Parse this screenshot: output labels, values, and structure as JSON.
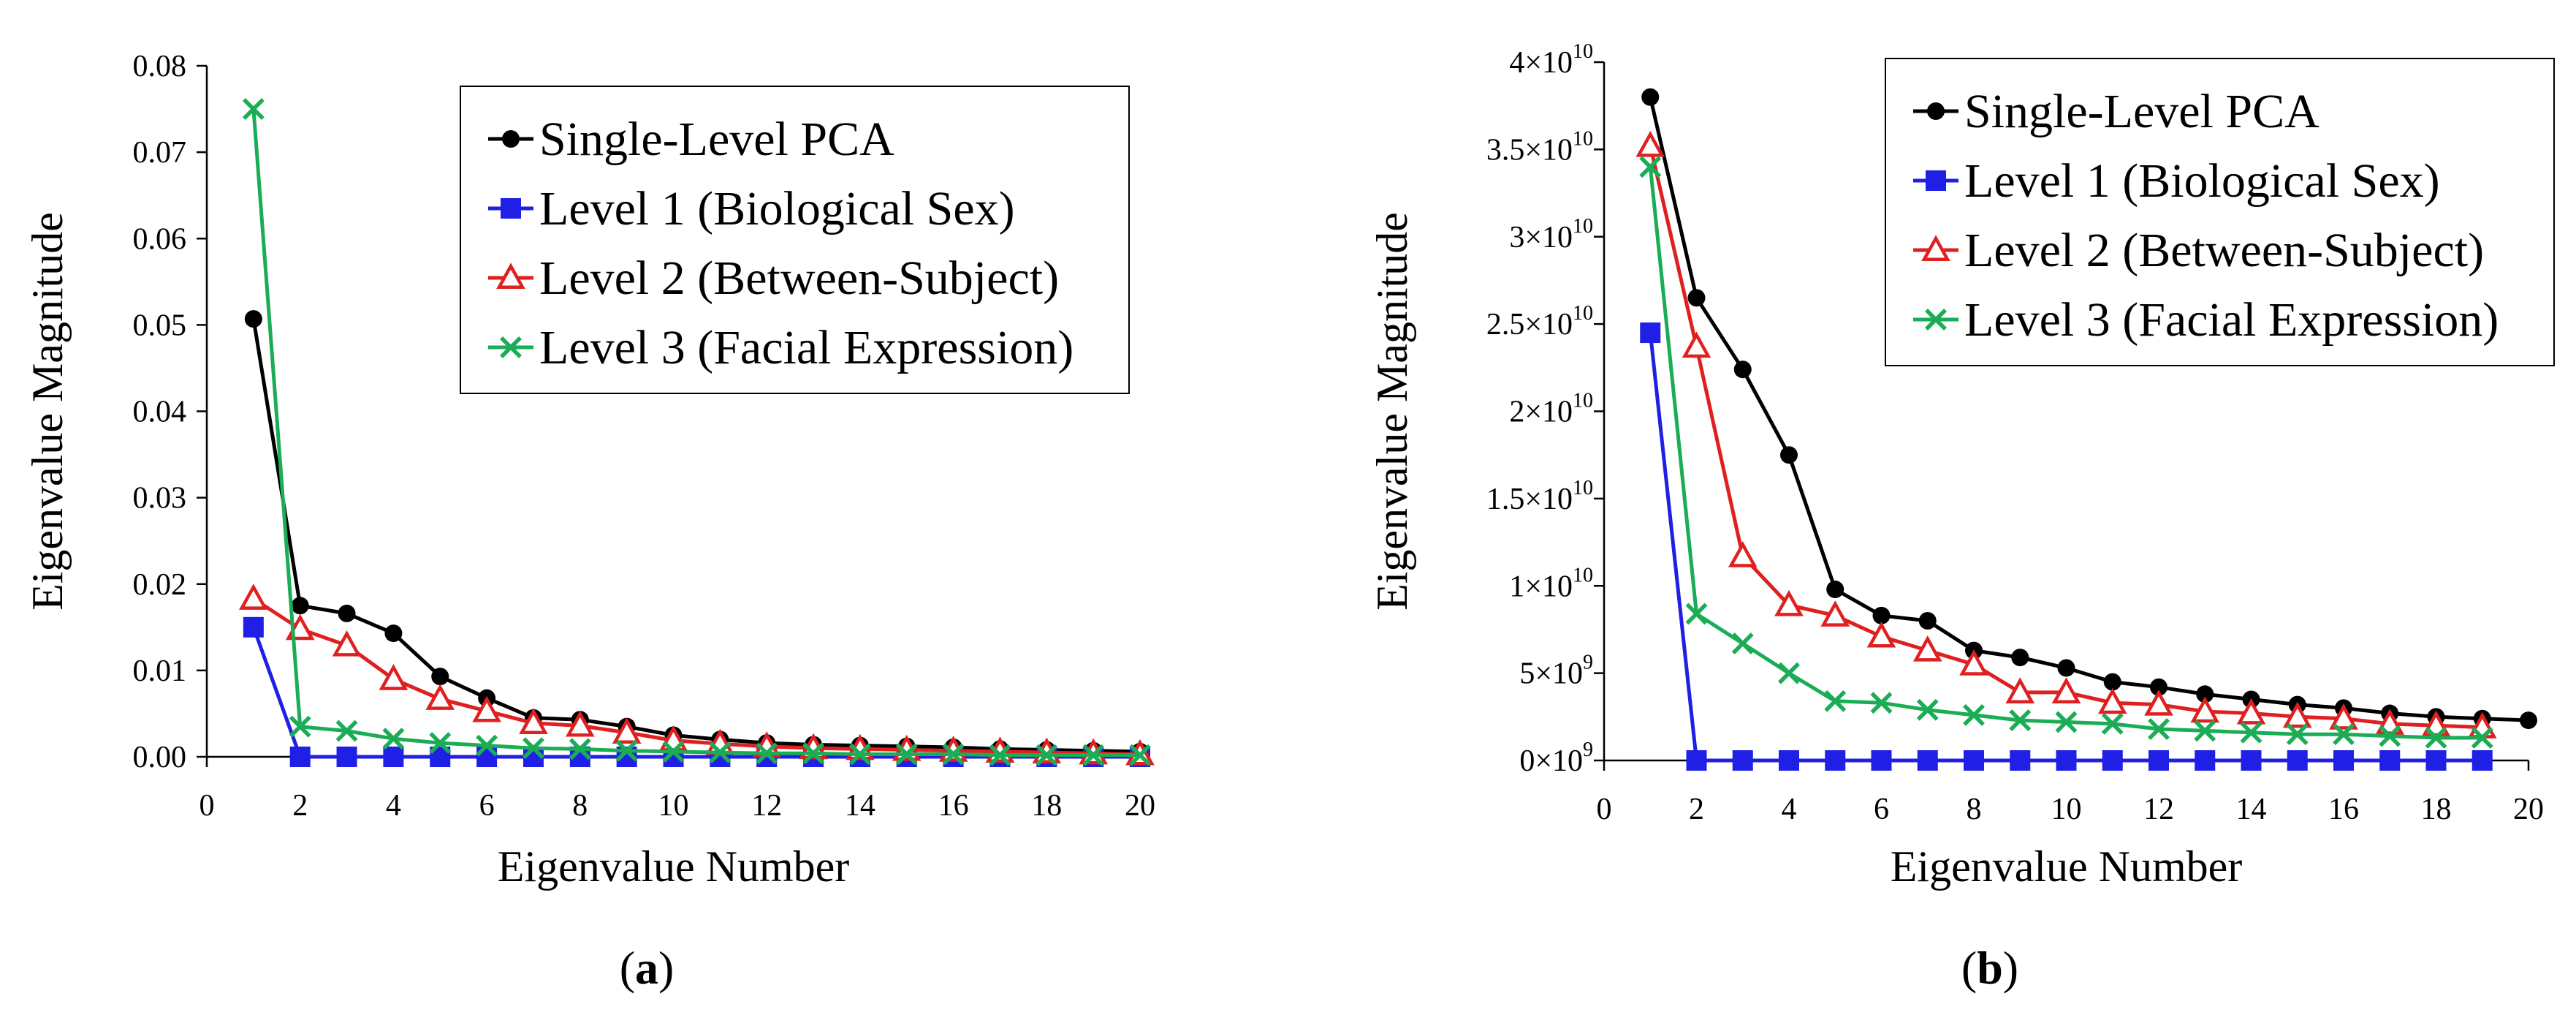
{
  "chart_data": [
    {
      "type": "line",
      "panel_label": "a",
      "xlabel": "Eigenvalue Number",
      "ylabel": "Eigenvalue Magnitude",
      "xlim": [
        0,
        20
      ],
      "ylim": [
        0,
        0.08
      ],
      "x_ticks": [
        "0",
        "2",
        "4",
        "6",
        "8",
        "10",
        "12",
        "14",
        "16",
        "18",
        "20"
      ],
      "y_ticks": [
        "0.00",
        "0.01",
        "0.02",
        "0.03",
        "0.04",
        "0.05",
        "0.06",
        "0.07",
        "0.08"
      ],
      "legend_position": "top-right",
      "series": [
        {
          "name": "Single-Level PCA",
          "color": "#000000",
          "marker": "circle",
          "x": [
            1,
            2,
            3,
            4,
            5,
            6,
            7,
            8,
            9,
            10,
            11,
            12,
            13,
            14,
            15,
            16,
            17,
            18,
            19,
            20
          ],
          "values": [
            0.0507,
            0.0175,
            0.0166,
            0.0143,
            0.0093,
            0.0068,
            0.0045,
            0.0043,
            0.0035,
            0.0025,
            0.002,
            0.0016,
            0.0014,
            0.0013,
            0.0012,
            0.0011,
            0.0009,
            0.0008,
            0.0007,
            0.0006
          ]
        },
        {
          "name": "Level 1 (Biological Sex)",
          "color": "#1f1fe6",
          "marker": "square",
          "x": [
            1,
            2,
            3,
            4,
            5,
            6,
            7,
            8,
            9,
            10,
            11,
            12,
            13,
            14,
            15,
            16,
            17,
            18,
            19,
            20
          ],
          "values": [
            0.015,
            0,
            0,
            0,
            0,
            0,
            0,
            0,
            0,
            0,
            0,
            0,
            0,
            0,
            0,
            0,
            0,
            0,
            0,
            0
          ]
        },
        {
          "name": "Level 2 (Between-Subject)",
          "color": "#e02020",
          "marker": "triangle",
          "x": [
            1,
            2,
            3,
            4,
            5,
            6,
            7,
            8,
            9,
            10,
            11,
            12,
            13,
            14,
            15,
            16,
            17,
            18,
            19,
            20
          ],
          "values": [
            0.0183,
            0.0148,
            0.0129,
            0.009,
            0.0067,
            0.0053,
            0.0039,
            0.0036,
            0.0028,
            0.0019,
            0.0015,
            0.0012,
            0.001,
            0.0009,
            0.0008,
            0.0007,
            0.0006,
            0.0005,
            0.0004,
            0.0003
          ]
        },
        {
          "name": "Level 3 (Facial Expression)",
          "color": "#1aad55",
          "marker": "x",
          "x": [
            1,
            2,
            3,
            4,
            5,
            6,
            7,
            8,
            9,
            10,
            11,
            12,
            13,
            14,
            15,
            16,
            17,
            18,
            19,
            20
          ],
          "values": [
            0.075,
            0.0035,
            0.003,
            0.0021,
            0.0016,
            0.0013,
            0.001,
            0.0009,
            0.0007,
            0.0006,
            0.0005,
            0.0004,
            0.0004,
            0.0003,
            0.0003,
            0.0003,
            0.0002,
            0.0002,
            0.0002,
            0.0002
          ]
        }
      ]
    },
    {
      "type": "line",
      "panel_label": "b",
      "xlabel": "Eigenvalue Number",
      "ylabel": "Eigenvalue Magnitude",
      "xlim": [
        0,
        20
      ],
      "ylim": [
        0,
        40000000000
      ],
      "x_ticks": [
        "0",
        "2",
        "4",
        "6",
        "8",
        "10",
        "12",
        "14",
        "16",
        "18",
        "20"
      ],
      "y_ticks": [
        {
          "mant": "0",
          "exp": "9"
        },
        {
          "mant": "5",
          "exp": "9"
        },
        {
          "mant": "1",
          "exp": "10"
        },
        {
          "mant": "1.5",
          "exp": "10"
        },
        {
          "mant": "2",
          "exp": "10"
        },
        {
          "mant": "2.5",
          "exp": "10"
        },
        {
          "mant": "3",
          "exp": "10"
        },
        {
          "mant": "3.5",
          "exp": "10"
        },
        {
          "mant": "4",
          "exp": "10"
        }
      ],
      "tick_times": "×10",
      "legend_position": "top-right",
      "series": [
        {
          "name": "Single-Level PCA",
          "color": "#000000",
          "marker": "circle",
          "x": [
            1,
            2,
            3,
            4,
            5,
            6,
            7,
            8,
            9,
            10,
            11,
            12,
            13,
            14,
            15,
            16,
            17,
            18,
            19,
            20
          ],
          "values": [
            38000000000,
            26500000000,
            22400000000,
            17500000000,
            9800000000,
            8300000000,
            8000000000,
            6300000000,
            5900000000,
            5300000000,
            4500000000,
            4200000000,
            3800000000,
            3500000000,
            3200000000,
            3000000000,
            2700000000,
            2500000000,
            2400000000,
            2300000000
          ]
        },
        {
          "name": "Level 1 (Biological Sex)",
          "color": "#1f1fe6",
          "marker": "square",
          "x": [
            1,
            2,
            3,
            4,
            5,
            6,
            7,
            8,
            9,
            10,
            11,
            12,
            13,
            14,
            15,
            16,
            17,
            18,
            19
          ],
          "values": [
            24500000000,
            0,
            0,
            0,
            0,
            0,
            0,
            0,
            0,
            0,
            0,
            0,
            0,
            0,
            0,
            0,
            0,
            0,
            0
          ]
        },
        {
          "name": "Level 2 (Between-Subject)",
          "color": "#e02020",
          "marker": "triangle",
          "x": [
            1,
            2,
            3,
            4,
            5,
            6,
            7,
            8,
            9,
            10,
            11,
            12,
            13,
            14,
            15,
            16,
            17,
            18,
            19
          ],
          "values": [
            35200000000,
            23700000000,
            11700000000,
            8900000000,
            8300000000,
            7100000000,
            6300000000,
            5500000000,
            3900000000,
            3900000000,
            3300000000,
            3200000000,
            2800000000,
            2700000000,
            2500000000,
            2400000000,
            2100000000,
            2000000000,
            1900000000
          ]
        },
        {
          "name": "Level 3 (Facial Expression)",
          "color": "#1aad55",
          "marker": "x",
          "x": [
            1,
            2,
            3,
            4,
            5,
            6,
            7,
            8,
            9,
            10,
            11,
            12,
            13,
            14,
            15,
            16,
            17,
            18,
            19
          ],
          "values": [
            34000000000,
            8400000000,
            6700000000,
            5000000000,
            3400000000,
            3300000000,
            2900000000,
            2600000000,
            2300000000,
            2200000000,
            2100000000,
            1800000000,
            1700000000,
            1600000000,
            1500000000,
            1500000000,
            1400000000,
            1300000000,
            1300000000
          ]
        }
      ]
    }
  ]
}
